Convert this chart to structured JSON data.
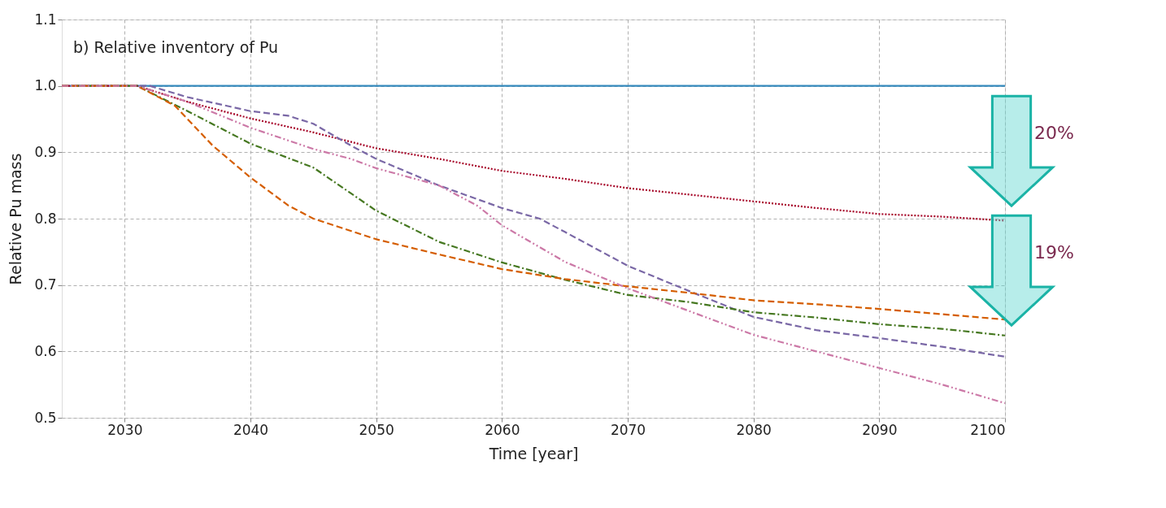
{
  "chart_data": {
    "type": "line",
    "title": "b) Relative inventory of Pu",
    "xlabel": "Time [year]",
    "ylabel": "Relative Pu mass",
    "xlim": [
      2025,
      2100
    ],
    "xticks": [
      2030,
      2040,
      2050,
      2060,
      2070,
      2080,
      2090,
      2100
    ],
    "ylim": [
      0.5,
      1.1
    ],
    "yticks": [
      0.5,
      0.6,
      0.7,
      0.8,
      0.9,
      {
        "value": 1,
        "label": "1.0"
      },
      1.1
    ],
    "grid": true,
    "annotations": [
      "20%",
      "19%"
    ],
    "series": [
      {
        "color": "#348abd",
        "line_style": "solid",
        "x": [
          2025,
          2100
        ],
        "values": [
          1.0,
          1.0
        ]
      },
      {
        "color": "#a60628",
        "line_style": "dotted",
        "x": [
          2025,
          2031,
          2035,
          2040,
          2045,
          2050,
          2055,
          2060,
          2065,
          2070,
          2075,
          2080,
          2085,
          2090,
          2095,
          2100
        ],
        "values": [
          1.0,
          1.0,
          0.976,
          0.951,
          0.93,
          0.906,
          0.89,
          0.872,
          0.86,
          0.846,
          0.836,
          0.826,
          0.816,
          0.807,
          0.803,
          0.797
        ]
      },
      {
        "color": "#7a68a6",
        "line_style": "dashed",
        "x": [
          2025,
          2032,
          2035,
          2040,
          2043,
          2045,
          2048,
          2050,
          2055,
          2060,
          2063,
          2065,
          2070,
          2075,
          2080,
          2085,
          2090,
          2095,
          2100
        ],
        "values": [
          1.0,
          1.0,
          0.983,
          0.962,
          0.955,
          0.943,
          0.91,
          0.89,
          0.85,
          0.816,
          0.8,
          0.78,
          0.729,
          0.69,
          0.652,
          0.632,
          0.62,
          0.607,
          0.592
        ]
      },
      {
        "color": "#467821",
        "line_style": "dashdot",
        "x": [
          2025,
          2031,
          2035,
          2040,
          2045,
          2050,
          2055,
          2060,
          2065,
          2070,
          2075,
          2080,
          2085,
          2090,
          2095,
          2100
        ],
        "values": [
          1.0,
          1.0,
          0.962,
          0.913,
          0.877,
          0.812,
          0.765,
          0.734,
          0.708,
          0.685,
          0.674,
          0.659,
          0.651,
          0.641,
          0.634,
          0.624
        ]
      },
      {
        "color": "#d55e00",
        "line_style": "dashed",
        "x": [
          2025,
          2031,
          2034,
          2037,
          2040,
          2043,
          2045,
          2050,
          2055,
          2060,
          2065,
          2070,
          2075,
          2080,
          2085,
          2090,
          2095,
          2100
        ],
        "values": [
          1.0,
          1.0,
          0.97,
          0.91,
          0.862,
          0.82,
          0.8,
          0.769,
          0.746,
          0.724,
          0.709,
          0.698,
          0.688,
          0.677,
          0.671,
          0.664,
          0.656,
          0.648
        ]
      },
      {
        "color": "#cc79a7",
        "line_style": "dashdotdot",
        "x": [
          2025,
          2031,
          2035,
          2040,
          2045,
          2048,
          2050,
          2055,
          2058,
          2060,
          2065,
          2070,
          2075,
          2080,
          2085,
          2090,
          2095,
          2100
        ],
        "values": [
          1.0,
          1.0,
          0.976,
          0.937,
          0.905,
          0.89,
          0.876,
          0.85,
          0.82,
          0.79,
          0.735,
          0.695,
          0.66,
          0.625,
          0.6,
          0.575,
          0.55,
          0.522
        ]
      }
    ]
  }
}
